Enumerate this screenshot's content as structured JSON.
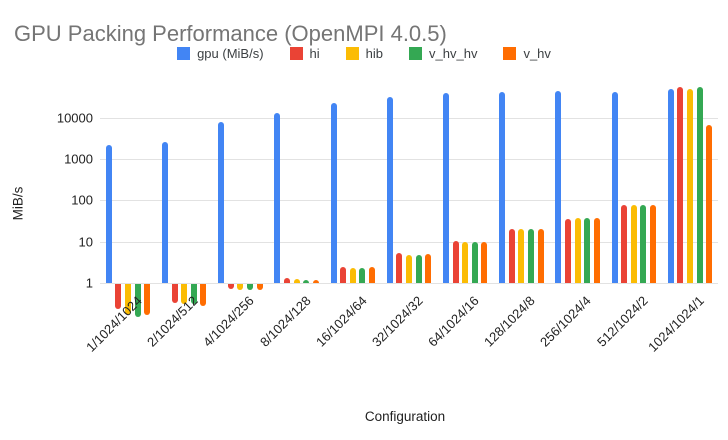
{
  "chart_data": {
    "type": "bar",
    "title": "GPU Packing Performance (OpenMPI 4.0.5)",
    "xlabel": "Configuration",
    "ylabel": "MiB/s",
    "y_scale": "log",
    "ylim": [
      0.1,
      70000
    ],
    "grid": true,
    "legend_position": "top-center",
    "yticks": [
      1,
      10,
      100,
      1000,
      10000
    ],
    "ytick_labels": [
      "1",
      "10",
      "100",
      "1000",
      "10000"
    ],
    "categories": [
      "1/1024/1024",
      "2/1024/512",
      "4/1024/256",
      "8/1024/128",
      "16/1024/64",
      "32/1024/32",
      "64/1024/16",
      "128/1024/8",
      "256/1024/4",
      "512/1024/2",
      "1024/1024/1"
    ],
    "series": [
      {
        "name": "gpu (MiB/s)",
        "color": "#4285F4",
        "values": [
          2200,
          2500,
          8000,
          12800,
          22000,
          32000,
          40000,
          42000,
          45000,
          42000,
          50000
        ]
      },
      {
        "name": "hi",
        "color": "#EA4335",
        "values": [
          0.25,
          0.35,
          0.75,
          1.3,
          2.5,
          5.2,
          10.5,
          20,
          36,
          75,
          55000
        ]
      },
      {
        "name": "hib",
        "color": "#FBBC04",
        "values": [
          0.18,
          0.33,
          0.72,
          1.25,
          2.3,
          4.8,
          10,
          20,
          38,
          75,
          50000
        ]
      },
      {
        "name": "v_hv_hv",
        "color": "#34A853",
        "values": [
          0.16,
          0.33,
          0.72,
          1.2,
          2.3,
          4.8,
          10,
          20,
          38,
          75,
          56000
        ]
      },
      {
        "name": "v_hv",
        "color": "#FF6D01",
        "values": [
          0.18,
          0.3,
          0.72,
          1.2,
          2.4,
          5.0,
          10,
          20,
          38,
          78,
          6500
        ]
      }
    ]
  },
  "colors": {
    "title_text": "#757575",
    "axis_text": "#222222",
    "gridline": "#e2e2e2",
    "background": "#ffffff"
  }
}
